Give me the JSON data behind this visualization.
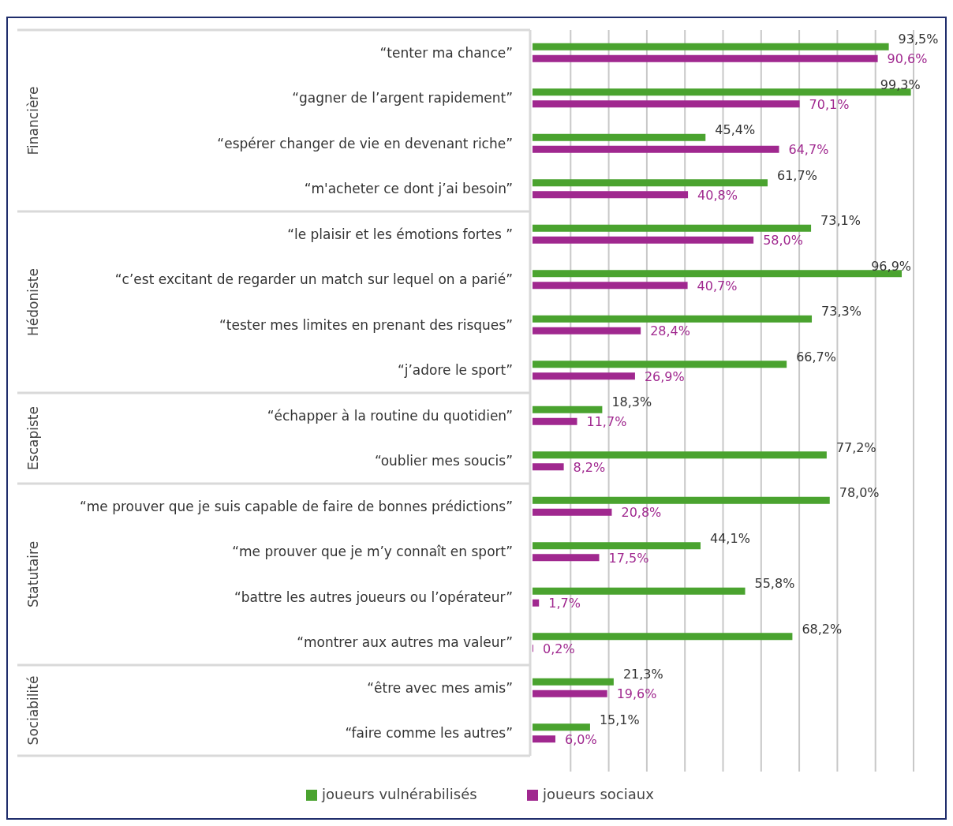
{
  "chart_data": {
    "type": "bar",
    "orientation": "horizontal",
    "categories": [
      "“tenter ma chance”",
      "“gagner de l’argent rapidement”",
      "“espérer changer de vie en devenant riche”",
      "“m'acheter ce dont j’ai besoin”",
      "“le plaisir et les émotions fortes ”",
      "“c’est excitant de regarder un match sur lequel on a parié”",
      "“tester mes limites en prenant des risques”",
      "“j’adore le sport”",
      "“échapper à la routine du quotidien”",
      "“oublier mes soucis”",
      "“me prouver que je suis capable de faire de bonnes prédictions”",
      "“me prouver que je m’y connaît en sport”",
      "“battre les autres joueurs ou l’opérateur”",
      "“montrer aux autres ma valeur”",
      "“être avec mes amis”",
      "“faire comme les autres”"
    ],
    "series": [
      {
        "name": "joueurs vulnérabilisés",
        "color": "#4aa32f",
        "values": [
          93.5,
          99.3,
          45.4,
          61.7,
          73.1,
          96.9,
          73.3,
          66.7,
          18.3,
          77.2,
          78.0,
          44.1,
          55.8,
          68.2,
          21.3,
          15.1
        ],
        "value_labels": [
          "93,5%",
          "99,3%",
          "45,4%",
          "61,7%",
          "73,1%",
          "96,9%",
          "73,3%",
          "66,7%",
          "18,3%",
          "77,2%",
          "78,0%",
          "44,1%",
          "55,8%",
          "68,2%",
          "21,3%",
          "15,1%"
        ]
      },
      {
        "name": "joueurs sociaux",
        "color": "#a0288f",
        "values": [
          90.6,
          70.1,
          64.7,
          40.8,
          58.0,
          40.7,
          28.4,
          26.9,
          11.7,
          8.2,
          20.8,
          17.5,
          1.7,
          0.2,
          19.6,
          6.0
        ],
        "value_labels": [
          "90,6%",
          "70,1%",
          "64,7%",
          "40,8%",
          "58,0%",
          "40,7%",
          "28,4%",
          "26,9%",
          "11,7%",
          "8,2%",
          "20,8%",
          "17,5%",
          "1,7%",
          "0,2%",
          "19,6%",
          "6,0%"
        ]
      }
    ],
    "xlim": [
      0,
      100
    ],
    "xticks": [
      {
        "value": 10,
        "label": null
      },
      {
        "value": 20,
        "label": null
      },
      {
        "value": 30,
        "label": null
      },
      {
        "value": 40,
        "label": null
      },
      {
        "value": 50,
        "label": null
      },
      {
        "value": 60,
        "label": null
      },
      {
        "value": 70,
        "label": null
      },
      {
        "value": 80,
        "label": null
      },
      {
        "value": 90,
        "label": null
      },
      {
        "value": 100,
        "label": null
      }
    ],
    "tick_labels": "y",
    "grid": "x",
    "legend": "bottom",
    "annotations": [
      "Financière",
      "Hédoniste",
      "Escapiste",
      "Statutaire",
      "Sociabilité"
    ]
  }
}
